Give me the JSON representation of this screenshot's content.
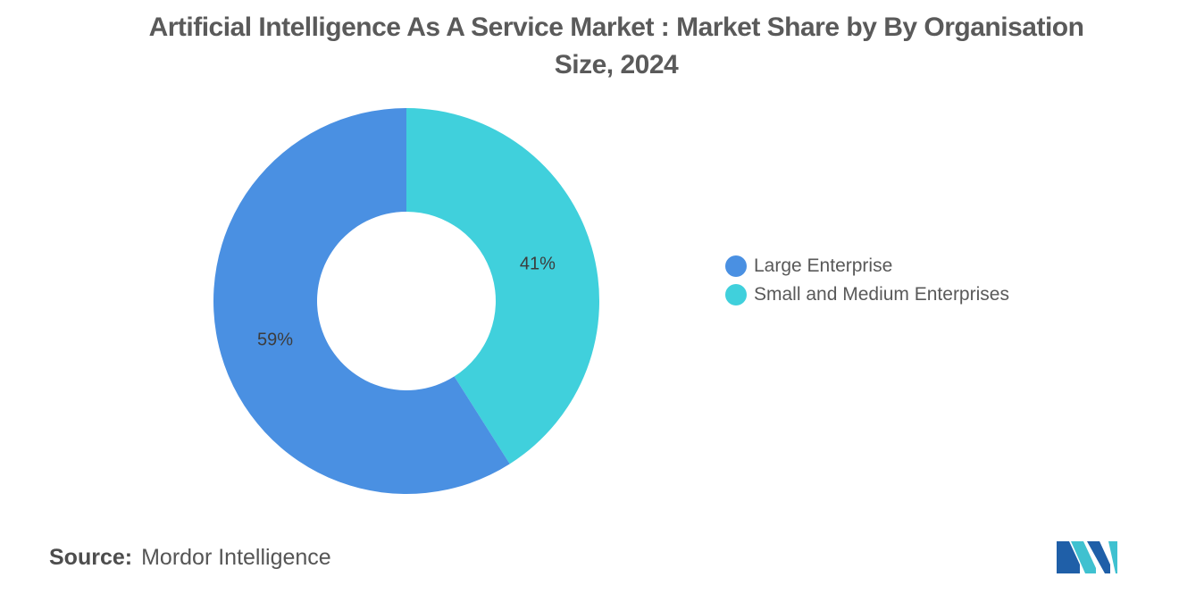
{
  "chart_data": {
    "type": "pie",
    "title": "Artificial Intelligence As A Service Market : Market Share by By Organisation Size, 2024",
    "donut": true,
    "categories": [
      "Large Enterprise",
      "Small and Medium Enterprises"
    ],
    "values": [
      59,
      41
    ],
    "value_labels": [
      "59%",
      "41%"
    ],
    "colors": [
      "#4a90e2",
      "#40d0dc"
    ],
    "legend_position": "right"
  },
  "source": {
    "label": "Source:",
    "value": "Mordor Intelligence"
  },
  "logo": {
    "icon": "mordor-intelligence-logo-icon",
    "colors": [
      "#1f5fa8",
      "#3fc1d0"
    ]
  }
}
